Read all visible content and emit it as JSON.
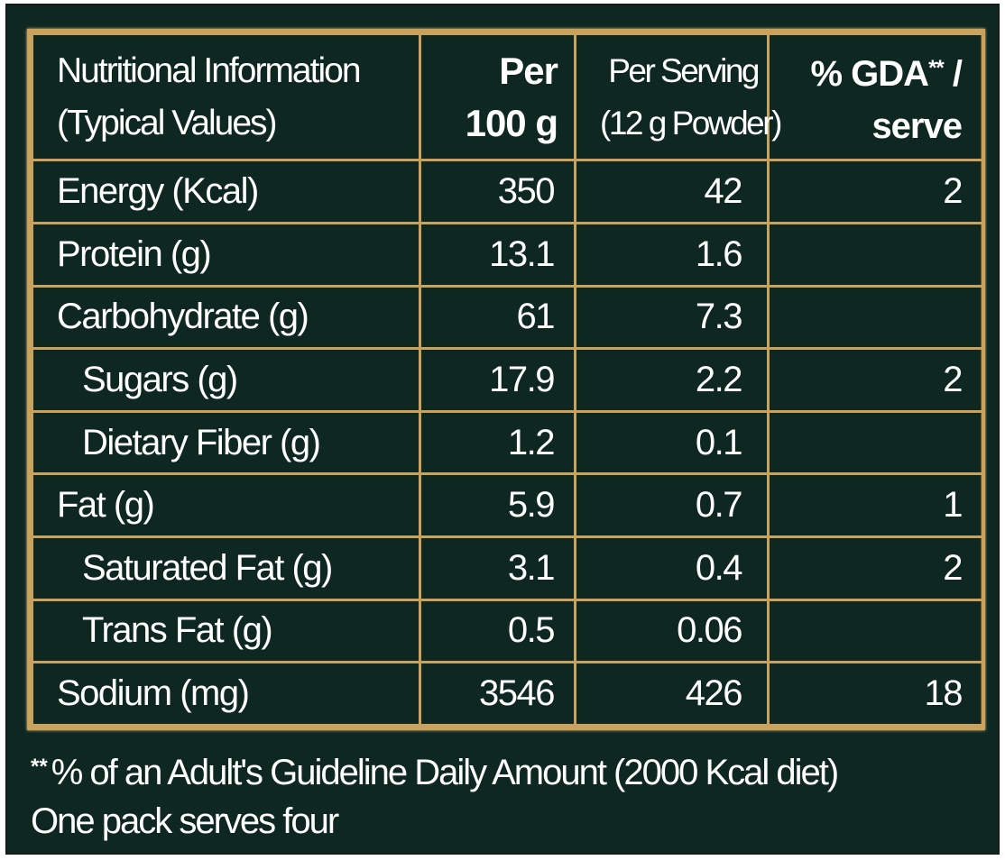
{
  "header": {
    "name_line1": "Nutritional Information",
    "name_line2": "(Typical Values)",
    "per100_line1": "Per",
    "per100_line2": "100 g",
    "serving_line1": "Per Serving",
    "serving_line2": "(12 g Powder)",
    "gda_prefix": "% GDA",
    "gda_sup": "**",
    "gda_suffix": " /",
    "gda_line2": "serve"
  },
  "rows": [
    {
      "name": "Energy (Kcal)",
      "per100": "350",
      "serving": "42",
      "gda": "2"
    },
    {
      "name": "Protein (g)",
      "per100": "13.1",
      "serving": "1.6",
      "gda": ""
    },
    {
      "name": "Carbohydrate (g)",
      "per100": "61",
      "serving": "7.3",
      "gda": ""
    },
    {
      "name": "Sugars (g)",
      "per100": "17.9",
      "serving": "2.2",
      "gda": "2"
    },
    {
      "name": "Dietary Fiber (g)",
      "per100": "1.2",
      "serving": "0.1",
      "gda": ""
    },
    {
      "name": "Fat (g)",
      "per100": "5.9",
      "serving": "0.7",
      "gda": "1"
    },
    {
      "name": "Saturated Fat (g)",
      "per100": "3.1",
      "serving": "0.4",
      "gda": "2"
    },
    {
      "name": "Trans Fat (g)",
      "per100": "0.5",
      "serving": "0.06",
      "gda": ""
    },
    {
      "name": "Sodium (mg)",
      "per100": "3546",
      "serving": "426",
      "gda": "18"
    }
  ],
  "footer": {
    "mark": "**",
    "note": "% of an Adult's Guideline Daily Amount (2000 Kcal diet)",
    "serves": "One pack serves four"
  },
  "colors": {
    "background": "#0f2721",
    "border_gold": "#c9a35e",
    "text": "#ffffff"
  }
}
